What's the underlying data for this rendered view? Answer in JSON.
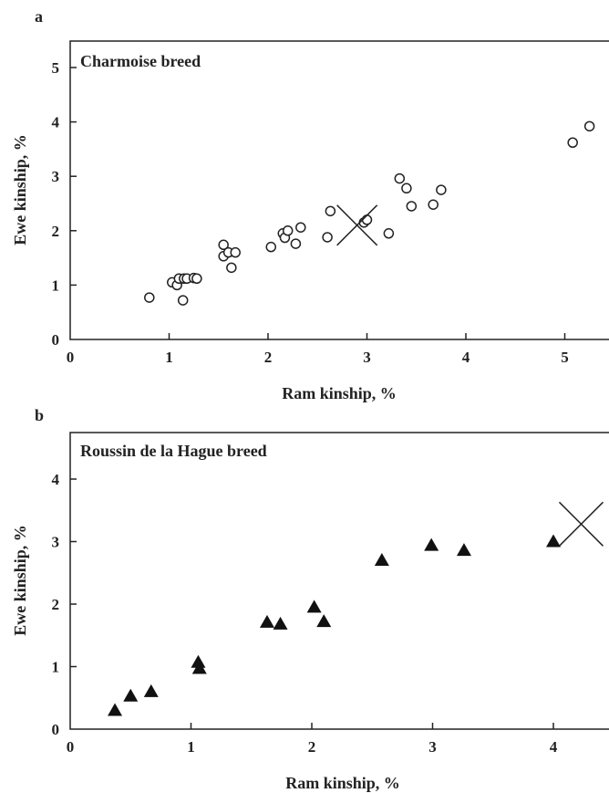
{
  "chart_data": [
    {
      "panel": "a",
      "type": "scatter",
      "title": "Charmoise breed",
      "xlabel": "Ram kinship, %",
      "ylabel": "Ewe kinship, %",
      "xlim": [
        0,
        5.5
      ],
      "ylim": [
        0,
        5.5
      ],
      "xticks": [
        "0",
        "1",
        "2",
        "3",
        "4",
        "5"
      ],
      "yticks": [
        "0",
        "1",
        "2",
        "3",
        "4",
        "5"
      ],
      "marker": "open-circle",
      "points": [
        [
          0.8,
          0.77
        ],
        [
          1.03,
          1.05
        ],
        [
          1.08,
          1.0
        ],
        [
          1.1,
          1.12
        ],
        [
          1.14,
          0.72
        ],
        [
          1.15,
          1.12
        ],
        [
          1.18,
          1.12
        ],
        [
          1.25,
          1.13
        ],
        [
          1.28,
          1.12
        ],
        [
          1.55,
          1.74
        ],
        [
          1.55,
          1.53
        ],
        [
          1.6,
          1.6
        ],
        [
          1.63,
          1.32
        ],
        [
          1.67,
          1.6
        ],
        [
          2.03,
          1.7
        ],
        [
          2.15,
          1.95
        ],
        [
          2.17,
          1.87
        ],
        [
          2.2,
          2.0
        ],
        [
          2.28,
          1.76
        ],
        [
          2.33,
          2.06
        ],
        [
          2.6,
          1.88
        ],
        [
          2.63,
          2.36
        ],
        [
          2.97,
          2.15
        ],
        [
          3.0,
          2.2
        ],
        [
          3.22,
          1.95
        ],
        [
          3.33,
          2.96
        ],
        [
          3.4,
          2.78
        ],
        [
          3.45,
          2.45
        ],
        [
          3.67,
          2.48
        ],
        [
          3.75,
          2.75
        ],
        [
          5.08,
          3.62
        ],
        [
          5.25,
          3.92
        ]
      ],
      "mean_marker": [
        2.9,
        2.1
      ]
    },
    {
      "panel": "b",
      "type": "scatter",
      "title": "Roussin de la Hague breed",
      "xlabel": "Ram kinship, %",
      "ylabel": "Ewe kinship, %",
      "xlim": [
        0,
        4.5
      ],
      "ylim": [
        0,
        4.5
      ],
      "xticks": [
        "0",
        "1",
        "2",
        "3",
        "4"
      ],
      "yticks": [
        "0",
        "1",
        "2",
        "3",
        "4"
      ],
      "marker": "filled-triangle",
      "points": [
        [
          0.37,
          0.3
        ],
        [
          0.5,
          0.53
        ],
        [
          0.67,
          0.6
        ],
        [
          1.06,
          1.07
        ],
        [
          1.07,
          0.97
        ],
        [
          1.63,
          1.71
        ],
        [
          1.74,
          1.68
        ],
        [
          2.02,
          1.95
        ],
        [
          2.1,
          1.72
        ],
        [
          2.58,
          2.7
        ],
        [
          2.99,
          2.94
        ],
        [
          3.26,
          2.86
        ],
        [
          4.0,
          3.0
        ]
      ],
      "mean_marker": [
        4.23,
        3.28
      ]
    }
  ]
}
